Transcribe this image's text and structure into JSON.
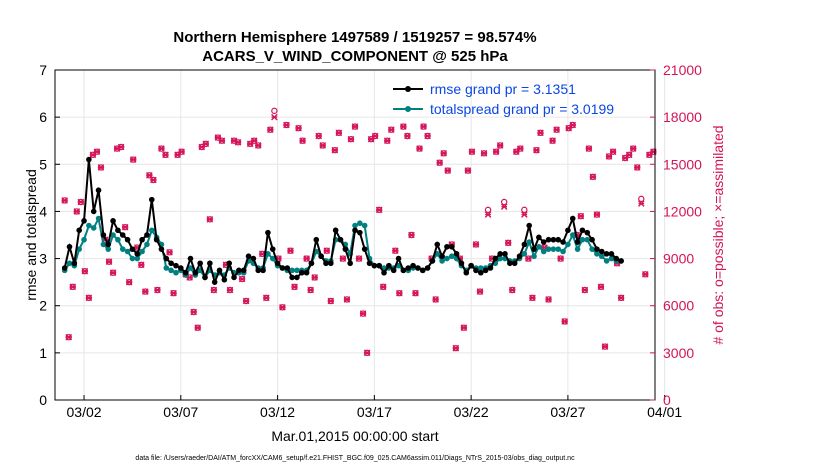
{
  "chart_data": {
    "type": "line",
    "title_line1": "Northern Hemisphere 1497589 / 1519257 = 98.574%",
    "title_line2": "ACARS_V_WIND_COMPONENT @ 525 hPa",
    "xlabel": "Mar.01,2015 00:00:00 start",
    "ylabel_left": "rmse and totalspread",
    "ylabel_right": "# of obs: o=possible; ×=assimilated",
    "footer": "data file: /Users/raeder/DAI/ATM_forcXX/CAM6_setup/f.e21.FHIST_BGC.f09_025.CAM6assim.011/Diags_NTrS_2015-03/obs_diag_output.nc",
    "x_range_days": [
      0.5,
      31.5
    ],
    "x_tick_labels": [
      "03/02",
      "03/07",
      "03/12",
      "03/17",
      "03/22",
      "03/27",
      "04/01"
    ],
    "ylim_left": [
      0,
      7
    ],
    "y_ticks_left": [
      "0",
      "1",
      "2",
      "3",
      "4",
      "5",
      "6",
      "7"
    ],
    "ylim_right": [
      0,
      21000
    ],
    "y_ticks_right": [
      "0",
      "3000",
      "6000",
      "9000",
      "12000",
      "15000",
      "18000",
      "21000"
    ],
    "colors": {
      "rmse": "#000000",
      "spread": "#008080",
      "obs": "#d4145a",
      "legend_text": "#0a46e6",
      "grid": "#e6e6e6"
    },
    "series": [
      {
        "name": "rmse grand pr = 3.1351",
        "key": "rmse",
        "values": [
          2.8,
          3.25,
          2.9,
          3.6,
          3.8,
          5.1,
          4.0,
          4.45,
          3.5,
          3.3,
          3.8,
          3.6,
          3.5,
          3.4,
          3.2,
          3.1,
          3.4,
          3.5,
          4.25,
          3.4,
          3.2,
          3.0,
          2.9,
          2.85,
          2.8,
          2.7,
          3.0,
          2.7,
          2.9,
          2.6,
          2.9,
          2.5,
          2.75,
          2.55,
          2.9,
          2.6,
          2.75,
          2.75,
          3.05,
          3.0,
          2.75,
          2.75,
          3.55,
          3.2,
          2.9,
          2.8,
          2.8,
          2.6,
          2.6,
          2.7,
          2.7,
          2.9,
          3.4,
          3.05,
          2.9,
          2.9,
          3.6,
          3.4,
          3.2,
          2.9,
          3.6,
          3.55,
          3.2,
          2.9,
          2.85,
          2.85,
          2.7,
          2.85,
          2.75,
          3.0,
          2.75,
          2.8,
          2.85,
          2.8,
          2.75,
          2.8,
          2.95,
          3.3,
          3.05,
          3.25,
          3.25,
          3.1,
          2.9,
          2.7,
          2.85,
          2.75,
          2.7,
          2.75,
          2.8,
          3.0,
          3.1,
          3.1,
          2.9,
          2.9,
          3.05,
          3.3,
          3.7,
          3.2,
          3.45,
          3.35,
          3.4,
          3.4,
          3.4,
          3.35,
          3.6,
          3.85,
          3.35,
          3.6,
          3.55,
          3.4,
          3.2,
          3.15,
          3.1,
          3.1,
          3.0,
          2.95
        ],
        "interval_hours": 6
      },
      {
        "name": "totalspread grand pr = 3.0199",
        "key": "spread",
        "values": [
          2.75,
          2.9,
          2.85,
          3.2,
          3.4,
          3.7,
          3.65,
          3.85,
          3.3,
          3.2,
          3.5,
          3.4,
          3.2,
          3.15,
          3.0,
          3.0,
          3.15,
          3.3,
          3.6,
          3.45,
          3.3,
          2.8,
          2.75,
          2.7,
          2.75,
          2.65,
          2.8,
          2.65,
          2.75,
          2.6,
          2.75,
          2.65,
          2.7,
          2.65,
          2.8,
          2.7,
          2.7,
          2.7,
          2.95,
          2.9,
          2.8,
          2.8,
          3.1,
          3.0,
          2.85,
          2.8,
          2.75,
          2.75,
          2.75,
          2.75,
          2.75,
          2.9,
          3.15,
          3.05,
          2.95,
          2.95,
          3.4,
          3.4,
          3.3,
          3.1,
          3.7,
          3.75,
          3.7,
          3.0,
          2.85,
          2.85,
          2.8,
          2.8,
          2.8,
          2.85,
          2.75,
          2.75,
          2.8,
          2.8,
          2.75,
          2.8,
          2.95,
          3.1,
          2.95,
          3.0,
          3.05,
          3.0,
          2.85,
          2.75,
          2.85,
          2.8,
          2.8,
          2.8,
          2.85,
          2.9,
          3.0,
          3.0,
          2.95,
          2.95,
          3.0,
          3.1,
          3.35,
          3.05,
          3.25,
          3.15,
          3.2,
          3.2,
          3.2,
          3.15,
          3.3,
          3.5,
          3.2,
          3.4,
          3.4,
          3.2,
          3.1,
          3.05,
          2.95,
          3.0,
          2.95,
          2.95
        ],
        "interval_hours": 6
      }
    ],
    "obs_possible": [
      12700,
      4000,
      7200,
      12000,
      12600,
      8200,
      6500,
      15600,
      15800,
      14800,
      10200,
      8800,
      8100,
      16000,
      16100,
      11000,
      7500,
      15300,
      9700,
      8600,
      6900,
      14300,
      14000,
      7000,
      16000,
      15600,
      9400,
      6800,
      15600,
      15800,
      8000,
      7800,
      5600,
      4600,
      16100,
      16300,
      11500,
      7000,
      16700,
      16500,
      8600,
      7000,
      16500,
      16400,
      7700,
      6300,
      16300,
      16500,
      16200,
      9300,
      6500,
      17200,
      18400,
      9000,
      5900,
      17500,
      9500,
      7200,
      17300,
      16500,
      9000,
      7000,
      7800,
      16800,
      16200,
      9500,
      6300,
      15900,
      17000,
      9000,
      6400,
      16600,
      17400,
      9000,
      5500,
      3000,
      16600,
      16800,
      12100,
      7200,
      16500,
      17200,
      9500,
      6800,
      17400,
      16800,
      10500,
      6800,
      16000,
      17400,
      16800,
      9000,
      6400,
      15100,
      15700,
      14600,
      9900,
      3300,
      9000,
      4600,
      14600,
      15800,
      9900,
      6900,
      15700,
      12100,
      9000,
      15800,
      16200,
      12600,
      10000,
      7000,
      15800,
      16000,
      12100,
      9000,
      6500,
      15900,
      17000,
      9700,
      6400,
      16500,
      17200,
      9000,
      5000,
      17300,
      17500,
      10500,
      11700,
      7000,
      16000,
      14200,
      11800,
      7200,
      3400,
      15500,
      15800,
      8700,
      6500,
      15400,
      15600,
      16000,
      14800,
      12800,
      8000,
      15600,
      15800,
      15700,
      16000,
      16000
    ],
    "obs_assimilated": [
      12700,
      4000,
      7200,
      12000,
      12600,
      8200,
      6500,
      15600,
      15800,
      14800,
      10200,
      8800,
      8100,
      16000,
      16100,
      11000,
      7500,
      15300,
      9700,
      8600,
      6900,
      14300,
      14000,
      7000,
      16000,
      15600,
      9400,
      6800,
      15600,
      15800,
      8000,
      7800,
      5600,
      4600,
      16100,
      16300,
      11500,
      7000,
      16700,
      16500,
      8600,
      7000,
      16500,
      16400,
      7700,
      6300,
      16300,
      16500,
      16200,
      9300,
      6500,
      17200,
      18000,
      9000,
      5900,
      17500,
      9500,
      7200,
      17300,
      16500,
      9000,
      7000,
      7800,
      16800,
      16200,
      9500,
      6300,
      15900,
      17000,
      9000,
      6400,
      16600,
      17400,
      9000,
      5500,
      3000,
      16600,
      16800,
      12100,
      7200,
      16500,
      17200,
      9500,
      6800,
      17400,
      16800,
      10500,
      6800,
      16000,
      17400,
      16800,
      9000,
      6400,
      15100,
      15700,
      14600,
      9900,
      3300,
      9000,
      4600,
      14600,
      15800,
      9900,
      6900,
      15700,
      11800,
      9000,
      15800,
      16200,
      12300,
      10000,
      7000,
      15800,
      16000,
      11800,
      9000,
      6500,
      15900,
      17000,
      9700,
      6400,
      16500,
      17200,
      9000,
      5000,
      17300,
      17500,
      10500,
      11700,
      7000,
      16000,
      14200,
      11800,
      7200,
      3400,
      15500,
      15800,
      8700,
      6500,
      15400,
      15600,
      16000,
      14800,
      12500,
      8000,
      15600,
      15800,
      15700,
      16000,
      16000
    ],
    "obs_interval_hours": 5
  }
}
